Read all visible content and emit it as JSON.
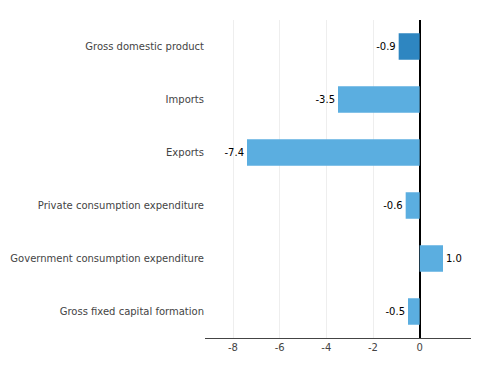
{
  "chart_data": {
    "type": "bar",
    "orientation": "horizontal",
    "categories": [
      "Gross fixed capital formation",
      "Government consumption expenditure",
      "Private consumption expenditure",
      "Exports",
      "Imports",
      "Gross domestic product"
    ],
    "values": [
      -0.5,
      1.0,
      -0.6,
      -7.4,
      -3.5,
      -0.9
    ],
    "value_labels": [
      "-0.5",
      "1.0",
      "-0.6",
      "-7.4",
      "-3.5",
      "-0.9"
    ],
    "colors": [
      "#5BAEE0",
      "#5BAEE0",
      "#5BAEE0",
      "#5BAEE0",
      "#5BAEE0",
      "#2E86C1"
    ],
    "xlim": [
      -9.2,
      2.2
    ],
    "xticks": [
      -8,
      -6,
      -4,
      -2,
      0
    ],
    "grid": true,
    "data_labels": true
  }
}
